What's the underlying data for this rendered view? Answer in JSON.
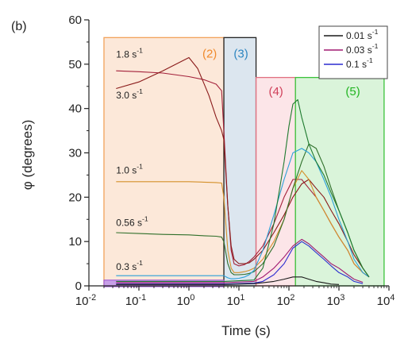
{
  "panel_label": "(b)",
  "chart_data": {
    "type": "line",
    "xlabel": "Time (s)",
    "ylabel": "φ (degrees)",
    "x_scale": "log",
    "xlim": [
      0.01,
      10000
    ],
    "ylim": [
      0,
      60
    ],
    "x_ticks": [
      {
        "value": 0.01,
        "base": "10",
        "exp": "-2"
      },
      {
        "value": 0.1,
        "base": "10",
        "exp": "-1"
      },
      {
        "value": 1,
        "base": "10",
        "exp": "0"
      },
      {
        "value": 10,
        "base": "10",
        "exp": "1"
      },
      {
        "value": 100,
        "base": "10",
        "exp": "2"
      },
      {
        "value": 1000,
        "base": "10",
        "exp": "3"
      },
      {
        "value": 10000,
        "base": "10",
        "exp": "4"
      }
    ],
    "y_ticks": [
      0,
      10,
      20,
      30,
      40,
      50,
      60
    ],
    "legend": {
      "position": "top-right",
      "entries": [
        {
          "label": "0.01 s",
          "sup": "-1",
          "color": "#1a1a1a"
        },
        {
          "label": "0.03 s",
          "sup": "-1",
          "color": "#a01870"
        },
        {
          "label": "0.1 s",
          "sup": "-1",
          "color": "#2c2cd0"
        }
      ]
    },
    "regions": [
      {
        "label": "(2)",
        "x0": 0.02,
        "x1": 5,
        "y0": 0,
        "y1": 56,
        "fill": "#fbe4d2",
        "stroke": "#f2a25a",
        "label_color": "#f08a2c",
        "label_x": 2.6,
        "label_y": 51.5
      },
      {
        "label": "(3)",
        "x0": 5,
        "x1": 22,
        "y0": 0,
        "y1": 56,
        "fill": "#d6e2ec",
        "stroke": "#222222",
        "label_color": "#2e86c1",
        "label_x": 11,
        "label_y": 51.5
      },
      {
        "label": "(4)",
        "x0": 22,
        "x1": 135,
        "y0": 0,
        "y1": 47,
        "fill": "#fbe0e4",
        "stroke": "#e07080",
        "label_color": "#d0405a",
        "label_x": 55,
        "label_y": 43
      },
      {
        "label": "(5)",
        "x0": 135,
        "x1": 8000,
        "y0": 0,
        "y1": 47,
        "fill": "#d4f2d4",
        "stroke": "#3ac23a",
        "label_color": "#22b522",
        "label_x": 1900,
        "label_y": 43
      }
    ],
    "annotations": [
      {
        "text": "1.8 s",
        "sup": "-1",
        "x": 0.035,
        "y": 51.5
      },
      {
        "text": "3.0 s",
        "sup": "-1",
        "x": 0.035,
        "y": 42.3
      },
      {
        "text": "1.0 s",
        "sup": "-1",
        "x": 0.035,
        "y": 25.3
      },
      {
        "text": "0.56 s",
        "sup": "-1",
        "x": 0.035,
        "y": 13.5
      },
      {
        "text": "0.3 s",
        "sup": "-1",
        "x": 0.035,
        "y": 3.6
      }
    ],
    "series": [
      {
        "color": "#a3203a",
        "x": [
          0.035,
          0.1,
          0.3,
          1,
          2,
          3.5,
          4.5,
          5,
          6,
          7,
          8,
          10,
          13,
          16,
          20,
          30,
          50,
          80,
          120,
          180,
          250,
          350,
          500,
          700,
          1000,
          1500,
          2000,
          3000,
          4000
        ],
        "y": [
          48.5,
          48.3,
          48,
          47.2,
          46.5,
          45.5,
          44,
          35,
          18,
          8,
          5,
          4.5,
          4.8,
          5.5,
          6.5,
          9,
          14,
          20,
          24,
          24,
          22,
          20,
          17,
          14,
          11,
          8,
          5,
          3,
          2
        ]
      },
      {
        "color": "#8a1a1a",
        "x": [
          0.035,
          0.1,
          0.3,
          1,
          1.5,
          2.5,
          3.5,
          4.5,
          5,
          6,
          7,
          8,
          10,
          13,
          16,
          20,
          30,
          50,
          80,
          120,
          180,
          250,
          350,
          500,
          700,
          1000,
          1500,
          2000,
          3000,
          4000
        ],
        "y": [
          44.5,
          46,
          48.5,
          51.5,
          49,
          43,
          38,
          35,
          33,
          18,
          9,
          6,
          5,
          5,
          5.2,
          6,
          8,
          12,
          16,
          20,
          23,
          24,
          22,
          20,
          17,
          14,
          10,
          7,
          4,
          2
        ]
      },
      {
        "color": "#d4902a",
        "x": [
          0.035,
          0.1,
          0.3,
          1,
          2,
          3.5,
          4.5,
          5,
          6,
          7,
          8,
          10,
          13,
          16,
          20,
          30,
          50,
          80,
          120,
          180,
          250,
          350,
          500,
          700,
          1000,
          1500,
          2000,
          3000,
          4000
        ],
        "y": [
          23.5,
          23.5,
          23.5,
          23.5,
          23.4,
          23.3,
          23.2,
          20,
          8,
          4,
          3,
          3,
          3.2,
          3.5,
          4,
          6,
          10,
          15,
          22,
          26,
          24,
          20,
          17,
          14,
          11,
          8,
          5,
          3,
          2
        ]
      },
      {
        "color": "#2f6f2a",
        "x": [
          0.035,
          0.1,
          0.3,
          1,
          2,
          3.5,
          4.5,
          5,
          6,
          7,
          8,
          10,
          13,
          16,
          20,
          30,
          50,
          80,
          120,
          180,
          250,
          350,
          500,
          700,
          1000,
          1500,
          2000,
          3000,
          4000
        ],
        "y": [
          12,
          11.8,
          11.6,
          11.5,
          11.3,
          11.2,
          11,
          10,
          5,
          3,
          2.5,
          2.5,
          2.6,
          2.8,
          3.2,
          5,
          9,
          15,
          22,
          28,
          32,
          31,
          27,
          22,
          17,
          12,
          8,
          4,
          2
        ]
      },
      {
        "color": "#2aa0d8",
        "x": [
          0.035,
          0.1,
          0.3,
          1,
          2,
          3.5,
          4.5,
          5,
          6,
          7,
          8,
          10,
          13,
          16,
          20,
          30,
          50,
          80,
          120,
          180,
          250,
          350,
          500,
          700,
          1000,
          1500,
          2000,
          3000,
          4000
        ],
        "y": [
          2.3,
          2.3,
          2.3,
          2.3,
          2.3,
          2.3,
          2.3,
          2.3,
          1.8,
          1.6,
          1.6,
          1.7,
          2,
          2.5,
          3.5,
          8,
          16,
          24,
          30,
          31,
          30,
          28,
          24,
          20,
          15,
          10,
          6,
          3,
          2
        ]
      },
      {
        "color": "#1e7a2e",
        "x": [
          0.035,
          0.1,
          1,
          5,
          20,
          30,
          50,
          80,
          100,
          120,
          150,
          180,
          250,
          350,
          500,
          700,
          1000,
          1500,
          2000,
          3000,
          4000
        ],
        "y": [
          1,
          1,
          1,
          1,
          1.3,
          4,
          14,
          28,
          36,
          41,
          42,
          38,
          32,
          28,
          25,
          21,
          17,
          12,
          8,
          4,
          2
        ]
      },
      {
        "color": "#a01870",
        "x": [
          0.035,
          0.1,
          1,
          5,
          20,
          30,
          50,
          80,
          120,
          180,
          250,
          350,
          500,
          700,
          1000,
          1500,
          2000,
          3000
        ],
        "y": [
          0.7,
          0.7,
          0.7,
          0.7,
          1,
          2,
          4,
          6.5,
          9,
          10.5,
          9.5,
          8,
          6.5,
          5,
          4,
          2.5,
          1.5,
          0.8
        ]
      },
      {
        "color": "#2c2cd0",
        "x": [
          0.035,
          0.1,
          1,
          5,
          20,
          30,
          50,
          80,
          120,
          180,
          250,
          350,
          500,
          700,
          1000,
          1500,
          2000,
          3000
        ],
        "y": [
          0.4,
          0.4,
          0.4,
          0.4,
          0.6,
          1,
          2.5,
          5,
          8.5,
          10,
          9,
          7.5,
          6,
          4.5,
          3,
          2,
          1,
          0.5
        ]
      },
      {
        "color": "#1a1a1a",
        "x": [
          0.035,
          0.1,
          1,
          5,
          20,
          30,
          50,
          80,
          120,
          180,
          250,
          350,
          500,
          700,
          1000
        ],
        "y": [
          0.3,
          0.3,
          0.3,
          0.3,
          0.5,
          0.7,
          1,
          1.5,
          2,
          2,
          1.5,
          1,
          0.7,
          0.4,
          0.3
        ]
      }
    ]
  }
}
